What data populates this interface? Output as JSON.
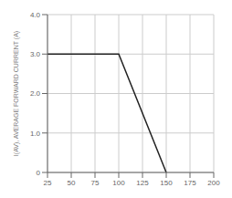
{
  "chart_data": {
    "type": "line",
    "x": [
      25,
      100,
      150
    ],
    "values": [
      3.0,
      3.0,
      0.0
    ],
    "color": "#222222",
    "xlim": [
      25,
      200
    ],
    "ylim": [
      0,
      4.0
    ],
    "xticks": [
      25,
      50,
      75,
      100,
      125,
      150,
      175,
      200
    ],
    "yticks": [
      0,
      {
        "value": 1.0,
        "label": "1.0"
      },
      {
        "value": 2.0,
        "label": "2.0"
      },
      {
        "value": 3.0,
        "label": "3.0"
      },
      {
        "value": 4.0,
        "label": "4.0"
      }
    ],
    "ylabel": "I(AV), AVERAGE FORWARD CURRENT (A)",
    "grid": true
  }
}
